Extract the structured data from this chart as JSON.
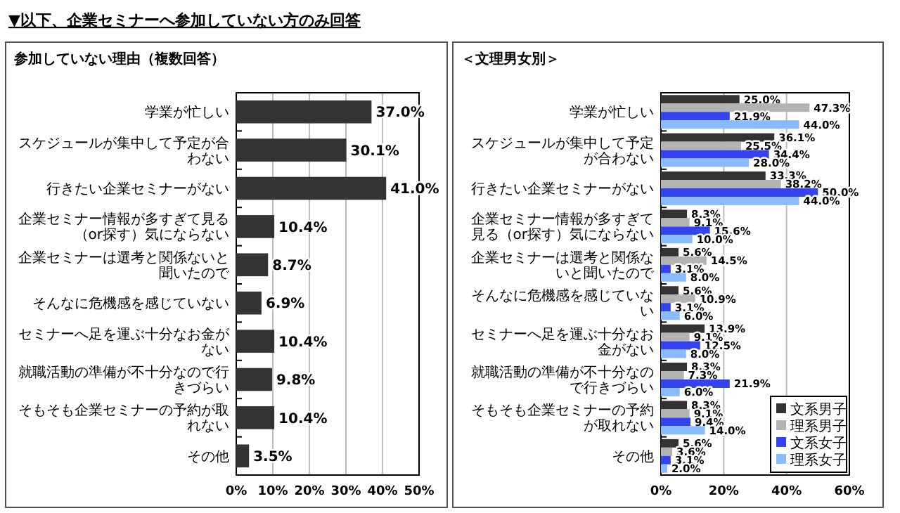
{
  "chart_data": [
    {
      "type": "bar",
      "orientation": "horizontal",
      "title": "▼以下、企業セミナーへ参加していない方のみ回答",
      "subtitle": "参加していない理由（複数回答）",
      "categories": [
        "学業が忙しい",
        "スケジュールが集中して予定が合わない",
        "行きたい企業セミナーがない",
        "企業セミナー情報が多すぎて見る（or探す）気にならない",
        "企業セミナーは選考と関係ないと聞いたので",
        "そんなに危機感を感じていない",
        "セミナーへ足を運ぶ十分なお金がない",
        "就職活動の準備が不十分なので行きづらい",
        "そもそも企業セミナーの予約が取れない",
        "その他"
      ],
      "series": [
        {
          "color": "#333333",
          "values": [
            37.0,
            30.1,
            41.0,
            10.4,
            8.7,
            6.9,
            10.4,
            9.8,
            10.4,
            3.5
          ],
          "value_labels": [
            "37.0%",
            "30.1%",
            "41.0%",
            "10.4%",
            "8.7%",
            "6.9%",
            "10.4%",
            "9.8%",
            "10.4%",
            "3.5%"
          ]
        }
      ],
      "xlim": [
        0,
        50
      ],
      "xticks": [
        {
          "value": 0,
          "label": "0%"
        },
        {
          "value": 10,
          "label": "10%"
        },
        {
          "value": 20,
          "label": "20%"
        },
        {
          "value": 30,
          "label": "30%"
        },
        {
          "value": 40,
          "label": "40%"
        },
        {
          "value": 50,
          "label": "50%"
        }
      ],
      "grid": "x",
      "legend": false
    },
    {
      "type": "bar",
      "orientation": "horizontal",
      "subtitle": "＜文理男女別＞",
      "categories": [
        "学業が忙しい",
        "スケジュールが集中して予定が合わない",
        "行きたい企業セミナーがない",
        "企業セミナー情報が多すぎて見る（or探す）気にならない",
        "企業セミナーは選考と関係ないと聞いたので",
        "そんなに危機感を感じていない",
        "セミナーへ足を運ぶ十分なお金がない",
        "就職活動の準備が不十分なので行きづらい",
        "そもそも企業セミナーの予約が取れない",
        "その他"
      ],
      "series": [
        {
          "name": "文系男子",
          "color": "#333333",
          "values": [
            25.0,
            36.1,
            33.3,
            8.3,
            5.6,
            5.6,
            13.9,
            8.3,
            8.3,
            5.6
          ],
          "value_labels": [
            "25.0%",
            "36.1%",
            "33.3%",
            "8.3%",
            "5.6%",
            "5.6%",
            "13.9%",
            "8.3%",
            "8.3%",
            "5.6%"
          ]
        },
        {
          "name": "理系男子",
          "color": "#b3b3b3",
          "values": [
            47.3,
            25.5,
            38.2,
            9.1,
            14.5,
            10.9,
            9.1,
            7.3,
            9.1,
            3.6
          ],
          "value_labels": [
            "47.3%",
            "25.5%",
            "38.2%",
            "9.1%",
            "14.5%",
            "10.9%",
            "9.1%",
            "7.3%",
            "9.1%",
            "3.6%"
          ]
        },
        {
          "name": "文系女子",
          "color": "#3344ee",
          "values": [
            21.9,
            34.4,
            50.0,
            15.6,
            3.1,
            3.1,
            12.5,
            21.9,
            9.4,
            3.1
          ],
          "value_labels": [
            "21.9%",
            "34.4%",
            "50.0%",
            "15.6%",
            "3.1%",
            "3.1%",
            "12.5%",
            "21.9%",
            "9.4%",
            "3.1%"
          ]
        },
        {
          "name": "理系女子",
          "color": "#88bbff",
          "values": [
            44.0,
            28.0,
            44.0,
            10.0,
            8.0,
            6.0,
            8.0,
            6.0,
            14.0,
            2.0
          ],
          "value_labels": [
            "44.0%",
            "28.0%",
            "44.0%",
            "10.0%",
            "8.0%",
            "6.0%",
            "8.0%",
            "6.0%",
            "14.0%",
            "2.0%"
          ]
        }
      ],
      "xlim": [
        0,
        60
      ],
      "xticks": [
        {
          "value": 0,
          "label": "0%"
        },
        {
          "value": 20,
          "label": "20%"
        },
        {
          "value": 40,
          "label": "40%"
        },
        {
          "value": 60,
          "label": "60%"
        }
      ],
      "grid": "x",
      "legend": "bottom right"
    }
  ]
}
